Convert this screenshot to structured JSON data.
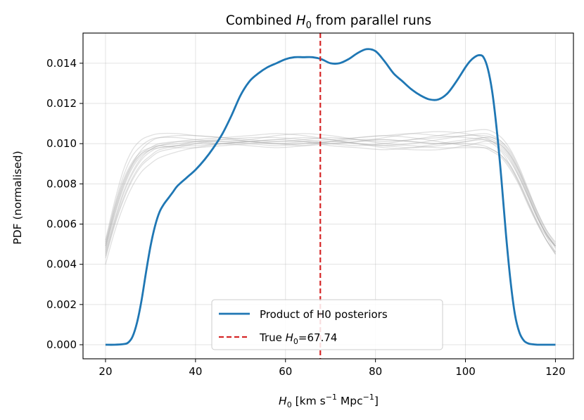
{
  "chart_data": {
    "type": "line",
    "title": {
      "prefix": "Combined ",
      "var": "H",
      "sub": "0",
      "suffix": " from parallel runs"
    },
    "xlabel": {
      "var": "H",
      "sub": "0",
      "rest": " [km s",
      "sup1": "−1",
      "mid": " Mpc",
      "sup2": "−1",
      "end": "]"
    },
    "ylabel": "PDF (normalised)",
    "xlim": [
      15,
      124
    ],
    "ylim": [
      -0.0007,
      0.0155
    ],
    "xticks": [
      20,
      40,
      60,
      80,
      100,
      120
    ],
    "xtick_labels": [
      "20",
      "40",
      "60",
      "80",
      "100",
      "120"
    ],
    "yticks": [
      0.0,
      0.002,
      0.004,
      0.006,
      0.008,
      0.01,
      0.012,
      0.014
    ],
    "ytick_labels": [
      "0.000",
      "0.002",
      "0.004",
      "0.006",
      "0.008",
      "0.010",
      "0.012",
      "0.014"
    ],
    "grid": true,
    "legend_position": "lower-center",
    "legend": [
      {
        "label": "Product of H0 posteriors",
        "style": "solid",
        "color": "#1f77b4"
      },
      {
        "label_prefix": "True ",
        "var": "H",
        "sub": "0",
        "label_suffix": "=67.74",
        "style": "dashed",
        "color": "#d62728"
      }
    ],
    "true_h0": 67.74,
    "product_series": {
      "name": "Product of H0 posteriors",
      "color": "#1f77b4",
      "x": [
        20,
        22,
        24,
        25,
        26,
        27,
        28,
        29,
        30,
        31,
        32,
        33,
        34,
        35,
        36,
        38,
        40,
        42,
        44,
        46,
        48,
        50,
        52,
        54,
        56,
        58,
        60,
        62,
        64,
        66,
        68,
        70,
        72,
        74,
        76,
        78,
        80,
        82,
        84,
        86,
        88,
        90,
        92,
        94,
        96,
        98,
        100,
        101,
        102,
        103,
        104,
        105,
        106,
        107,
        108,
        109,
        110,
        111,
        112,
        113,
        114,
        115,
        116,
        118,
        120
      ],
      "y": [
        0.0,
        0.0,
        3e-05,
        0.0001,
        0.0004,
        0.0011,
        0.0022,
        0.0036,
        0.0049,
        0.0059,
        0.0066,
        0.007,
        0.0073,
        0.0076,
        0.0079,
        0.0083,
        0.0087,
        0.0092,
        0.0098,
        0.0105,
        0.0114,
        0.0124,
        0.0131,
        0.0135,
        0.0138,
        0.014,
        0.0142,
        0.0143,
        0.0143,
        0.0143,
        0.0142,
        0.014,
        0.014,
        0.0142,
        0.0145,
        0.0147,
        0.0146,
        0.0141,
        0.0135,
        0.0131,
        0.0127,
        0.0124,
        0.0122,
        0.0122,
        0.0125,
        0.0131,
        0.0138,
        0.0141,
        0.0143,
        0.0144,
        0.0143,
        0.0137,
        0.0125,
        0.0106,
        0.0082,
        0.0055,
        0.0032,
        0.0015,
        0.0006,
        0.0002,
        6e-05,
        2e-05,
        0.0,
        0.0,
        0.0
      ]
    },
    "run_series": {
      "name": "Individual runs",
      "color": "#a6a6a6",
      "x": [
        20,
        22,
        24,
        26,
        28,
        30,
        32,
        36,
        40,
        46,
        52,
        58,
        64,
        70,
        76,
        82,
        88,
        94,
        100,
        104,
        106,
        108,
        110,
        112,
        114,
        116,
        118,
        120
      ],
      "series": [
        {
          "y": [
            0.0049,
            0.0066,
            0.008,
            0.009,
            0.0097,
            0.0101,
            0.0103,
            0.0104,
            0.0104,
            0.0103,
            0.0102,
            0.0101,
            0.0102,
            0.0103,
            0.0102,
            0.0101,
            0.0102,
            0.0103,
            0.0104,
            0.0104,
            0.0103,
            0.01,
            0.0094,
            0.0085,
            0.0074,
            0.0063,
            0.0055,
            0.0049
          ]
        },
        {
          "y": [
            0.0045,
            0.0061,
            0.0075,
            0.0085,
            0.0092,
            0.0096,
            0.0098,
            0.0099,
            0.0099,
            0.01,
            0.0101,
            0.01,
            0.0099,
            0.01,
            0.0101,
            0.0102,
            0.0101,
            0.01,
            0.01,
            0.0099,
            0.0097,
            0.0094,
            0.0088,
            0.008,
            0.007,
            0.006,
            0.0052,
            0.0045
          ]
        },
        {
          "y": [
            0.0052,
            0.0071,
            0.0087,
            0.0097,
            0.0102,
            0.0104,
            0.0105,
            0.0105,
            0.0104,
            0.0103,
            0.0101,
            0.01,
            0.0101,
            0.0102,
            0.0103,
            0.0104,
            0.0105,
            0.0104,
            0.0103,
            0.0102,
            0.01,
            0.0096,
            0.0089,
            0.008,
            0.007,
            0.0061,
            0.0054,
            0.0049
          ]
        },
        {
          "y": [
            0.004,
            0.0056,
            0.0069,
            0.0079,
            0.0086,
            0.009,
            0.0093,
            0.0096,
            0.0098,
            0.01,
            0.0101,
            0.0102,
            0.0103,
            0.0102,
            0.01,
            0.0099,
            0.0098,
            0.0099,
            0.0101,
            0.0102,
            0.0101,
            0.0098,
            0.0092,
            0.0083,
            0.0073,
            0.0063,
            0.0055,
            0.0049
          ]
        },
        {
          "y": [
            0.0047,
            0.0064,
            0.0078,
            0.0088,
            0.0094,
            0.0097,
            0.0099,
            0.01,
            0.0101,
            0.0101,
            0.01,
            0.0099,
            0.01,
            0.0101,
            0.01,
            0.0099,
            0.01,
            0.0102,
            0.0104,
            0.0105,
            0.0104,
            0.0101,
            0.0095,
            0.0086,
            0.0075,
            0.0064,
            0.0054,
            0.0046
          ]
        },
        {
          "y": [
            0.0051,
            0.0069,
            0.0084,
            0.0094,
            0.0099,
            0.0102,
            0.0103,
            0.0103,
            0.0102,
            0.0101,
            0.0102,
            0.0104,
            0.0105,
            0.0104,
            0.0102,
            0.01,
            0.0099,
            0.0098,
            0.0098,
            0.0098,
            0.0097,
            0.0094,
            0.0089,
            0.0081,
            0.0071,
            0.0061,
            0.0052,
            0.0045
          ]
        },
        {
          "y": [
            0.0043,
            0.0059,
            0.0072,
            0.0082,
            0.0089,
            0.0093,
            0.0096,
            0.0098,
            0.01,
            0.0102,
            0.0103,
            0.0103,
            0.0102,
            0.01,
            0.0099,
            0.01,
            0.0102,
            0.0104,
            0.0106,
            0.0107,
            0.0106,
            0.0103,
            0.0097,
            0.0088,
            0.0077,
            0.0066,
            0.0057,
            0.005
          ]
        },
        {
          "y": [
            0.0048,
            0.0065,
            0.0079,
            0.0089,
            0.0095,
            0.0098,
            0.01,
            0.0101,
            0.0101,
            0.01,
            0.0099,
            0.0098,
            0.0099,
            0.0101,
            0.0103,
            0.0104,
            0.0103,
            0.0101,
            0.0099,
            0.0098,
            0.0096,
            0.0093,
            0.0087,
            0.0079,
            0.0069,
            0.006,
            0.0052,
            0.0046
          ]
        },
        {
          "y": [
            0.0046,
            0.0062,
            0.0076,
            0.0086,
            0.0093,
            0.0097,
            0.0099,
            0.0101,
            0.0102,
            0.0103,
            0.0104,
            0.0105,
            0.0104,
            0.0102,
            0.01,
            0.0098,
            0.0097,
            0.0097,
            0.0099,
            0.0101,
            0.0101,
            0.0099,
            0.0094,
            0.0086,
            0.0076,
            0.0066,
            0.0057,
            0.0051
          ]
        },
        {
          "y": [
            0.005,
            0.0068,
            0.0082,
            0.0091,
            0.0096,
            0.0098,
            0.0099,
            0.0098,
            0.0098,
            0.0099,
            0.01,
            0.0101,
            0.0101,
            0.01,
            0.0101,
            0.0103,
            0.0105,
            0.0106,
            0.0105,
            0.0103,
            0.0101,
            0.0097,
            0.0091,
            0.0083,
            0.0073,
            0.0063,
            0.0055,
            0.0049
          ]
        },
        {
          "y": [
            0.0044,
            0.006,
            0.0073,
            0.0083,
            0.009,
            0.0094,
            0.0097,
            0.0099,
            0.0101,
            0.0102,
            0.0101,
            0.01,
            0.01,
            0.0101,
            0.0102,
            0.0102,
            0.0101,
            0.01,
            0.0101,
            0.0103,
            0.0103,
            0.0101,
            0.0096,
            0.0087,
            0.0076,
            0.0065,
            0.0056,
            0.0049
          ]
        },
        {
          "y": [
            0.0049,
            0.0067,
            0.0081,
            0.009,
            0.0095,
            0.0097,
            0.0098,
            0.0099,
            0.01,
            0.01,
            0.0101,
            0.0102,
            0.0101,
            0.0099,
            0.0098,
            0.0097,
            0.0098,
            0.01,
            0.0102,
            0.0103,
            0.0102,
            0.0099,
            0.0093,
            0.0084,
            0.0074,
            0.0064,
            0.0055,
            0.0048
          ]
        }
      ]
    }
  }
}
